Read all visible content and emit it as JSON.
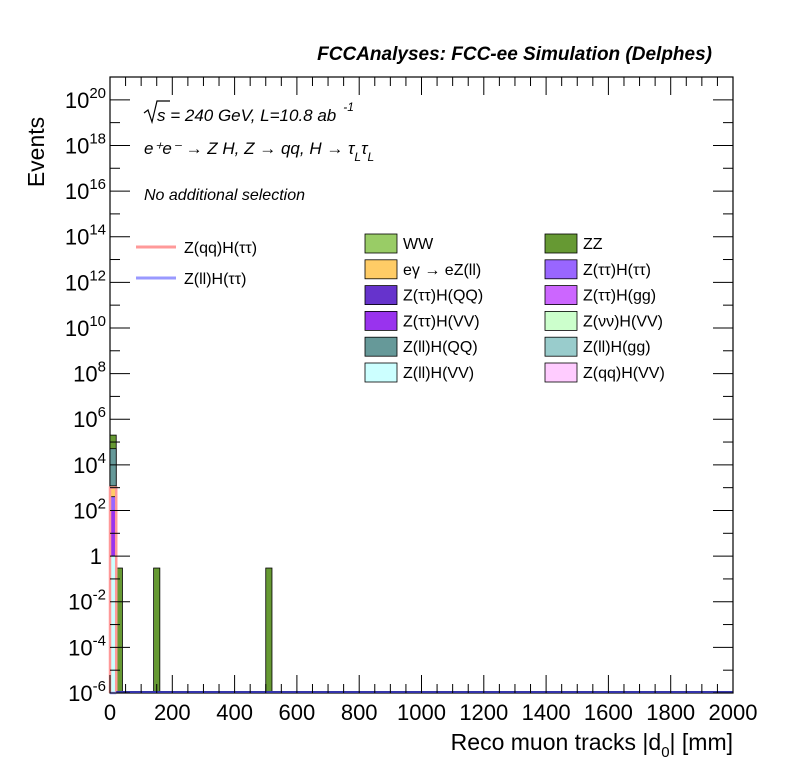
{
  "header": {
    "title": "FCCAnalyses: FCC-ee Simulation (Delphes)"
  },
  "annotations": {
    "energy_prefix": "s",
    "energy_rest": " = 240 GeV, L=10.8 ab",
    "lumi_exp": "-1",
    "process": "e⁺e⁻ → Z H, Z → qq, H → τ",
    "tau_sub": "L",
    "tau2": "τ",
    "tau2_sub": "L",
    "selection": "No additional selection"
  },
  "chart_data": {
    "type": "bar",
    "stacked": true,
    "xlabel": "Reco muon tracks |d",
    "xlabel_sub": "0",
    "xlabel_tail": "| [mm]",
    "ylabel": "Events",
    "xlim": [
      0,
      2000
    ],
    "ylim": [
      1e-06,
      1e+21
    ],
    "log_y": true,
    "bin_width": 40,
    "x_ticks": [
      "0",
      "200",
      "400",
      "600",
      "800",
      "1000",
      "1200",
      "1400",
      "1600",
      "1800",
      "2000"
    ],
    "y_ticks": [
      {
        "m": "10",
        "e": "-6",
        "p": -6
      },
      {
        "m": "10",
        "e": "-4",
        "p": -4
      },
      {
        "m": "10",
        "e": "-2",
        "p": -2
      },
      {
        "m": "1",
        "e": "",
        "p": 0
      },
      {
        "m": "10",
        "e": "2",
        "p": 2
      },
      {
        "m": "10",
        "e": "4",
        "p": 4
      },
      {
        "m": "10",
        "e": "6",
        "p": 6
      },
      {
        "m": "10",
        "e": "8",
        "p": 8
      },
      {
        "m": "10",
        "e": "10",
        "p": 10
      },
      {
        "m": "10",
        "e": "12",
        "p": 12
      },
      {
        "m": "10",
        "e": "14",
        "p": 14
      },
      {
        "m": "10",
        "e": "16",
        "p": 16
      },
      {
        "m": "10",
        "e": "18",
        "p": 18
      },
      {
        "m": "10",
        "e": "20",
        "p": 20
      }
    ],
    "stack": [
      {
        "name": "Z(ll)H(VV)",
        "color": "#ccffff",
        "bins": [
          {
            "x0": 0,
            "x1": 20,
            "y": 1
          }
        ]
      },
      {
        "name": "Z(ττ)H(VV)",
        "color": "#9933ee",
        "bins": [
          {
            "x0": 0,
            "x1": 20,
            "y": 100
          }
        ]
      },
      {
        "name": "Z(ττ)H(ττ)",
        "color": "#9966ff",
        "bins": [
          {
            "x0": 0,
            "x1": 20,
            "y": 300
          }
        ]
      },
      {
        "name": "eγ → eZ(ll)",
        "color": "#ffcc66",
        "bins": [
          {
            "x0": 0,
            "x1": 20,
            "y": 800
          }
        ]
      },
      {
        "name": "Z(ll)H(QQ)",
        "color": "#669999",
        "bins": [
          {
            "x0": 0,
            "x1": 20,
            "y": 50000
          }
        ]
      },
      {
        "name": "ZZ",
        "color": "#669933",
        "bins": [
          {
            "x0": 0,
            "x1": 20,
            "y": 150000
          },
          {
            "x0": 20,
            "x1": 40,
            "y": 0.3
          },
          {
            "x0": 140,
            "x1": 160,
            "y": 0.3
          },
          {
            "x0": 500,
            "x1": 520,
            "y": 0.3
          }
        ]
      }
    ],
    "signals": [
      {
        "name": "Z(qq)H(ττ)",
        "color": "#ff9999",
        "bins": [
          {
            "x0": 0,
            "x1": 20,
            "y": 1000
          }
        ],
        "baseline": 1e-06
      },
      {
        "name": "Z(ll)H(ττ)",
        "color": "#9999ff",
        "bins": [
          {
            "x0": 0,
            "x1": 20,
            "y": 1e-06
          }
        ],
        "baseline": 1e-06
      }
    ],
    "legend_signals": [
      {
        "label": "Z(qq)H(ττ)",
        "color": "#ff9999"
      },
      {
        "label": "Z(ll)H(ττ)",
        "color": "#9999ff"
      }
    ],
    "legend_backgrounds": [
      {
        "label": "WW",
        "color": "#99cc66"
      },
      {
        "label": "ZZ",
        "color": "#669933"
      },
      {
        "label": "eγ → eZ(ll)",
        "color": "#ffcc66"
      },
      {
        "label": "Z(ττ)H(ττ)",
        "color": "#9966ff"
      },
      {
        "label": "Z(ττ)H(QQ)",
        "color": "#6633cc"
      },
      {
        "label": "Z(ττ)H(gg)",
        "color": "#cc66ff"
      },
      {
        "label": "Z(ττ)H(VV)",
        "color": "#9933ee"
      },
      {
        "label": "Z(νν)H(VV)",
        "color": "#ccffcc"
      },
      {
        "label": "Z(ll)H(QQ)",
        "color": "#669999"
      },
      {
        "label": "Z(ll)H(gg)",
        "color": "#99cccc"
      },
      {
        "label": "Z(ll)H(VV)",
        "color": "#ccffff"
      },
      {
        "label": "Z(qq)H(VV)",
        "color": "#ffccff"
      }
    ]
  }
}
